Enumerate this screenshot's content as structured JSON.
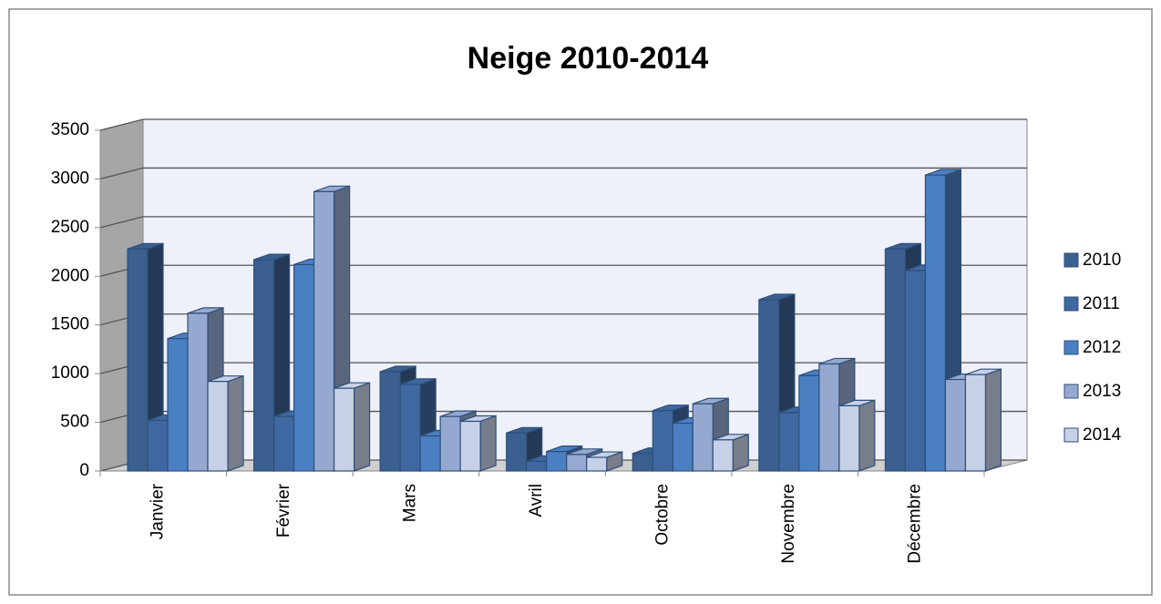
{
  "chart_data": {
    "type": "bar3d",
    "title": "Neige 2010-2014",
    "categories": [
      "Janvier",
      "Février",
      "Mars",
      "Avril",
      "Octobre",
      "Novembre",
      "Décembre"
    ],
    "series": [
      {
        "name": "2010",
        "color": "#3b5f8e",
        "values": [
          2280,
          2170,
          1020,
          390,
          180,
          1760,
          2280
        ]
      },
      {
        "name": "2011",
        "color": "#4068a0",
        "values": [
          520,
          560,
          890,
          100,
          620,
          600,
          2060
        ]
      },
      {
        "name": "2012",
        "color": "#4a7fc2",
        "values": [
          1360,
          2120,
          360,
          200,
          490,
          980,
          3040
        ]
      },
      {
        "name": "2013",
        "color": "#95a9d0",
        "values": [
          1620,
          2870,
          560,
          170,
          690,
          1100,
          940
        ]
      },
      {
        "name": "2014",
        "color": "#c6d1e7",
        "values": [
          920,
          850,
          510,
          140,
          320,
          670,
          990
        ]
      }
    ],
    "ylim": [
      0,
      3500
    ],
    "yticks": [
      0,
      500,
      1000,
      1500,
      2000,
      2500,
      3000,
      3500
    ],
    "grid": true,
    "legend": "right"
  }
}
